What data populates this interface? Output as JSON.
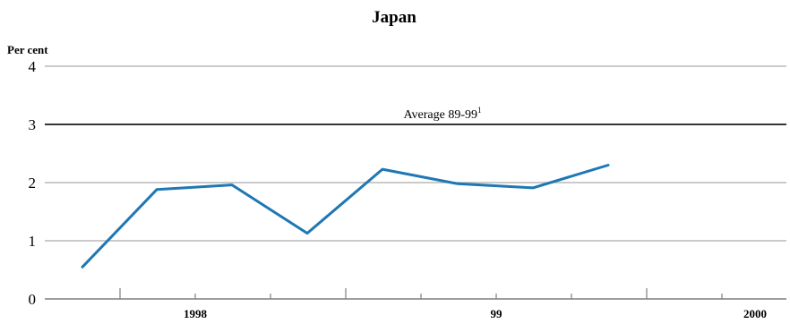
{
  "chart_data": {
    "type": "line",
    "title": "Japan",
    "ylabel": "Per cent",
    "ylim": [
      0,
      4
    ],
    "yticks": [
      "0",
      "1",
      "2",
      "3",
      "4"
    ],
    "xtick_labels": [
      "1998",
      "99",
      "2000"
    ],
    "grid": true,
    "series": [
      {
        "color": "#1f77b4",
        "x": [
          "1997 Q3",
          "1997 Q4",
          "1998 Q1",
          "1998 Q2",
          "1998 Q3",
          "1998 Q4",
          "1999 Q1",
          "1999 Q2"
        ],
        "values": [
          0.55,
          1.88,
          1.96,
          1.13,
          2.23,
          1.98,
          1.91,
          2.3
        ]
      }
    ],
    "reference_line": {
      "value": 3.0,
      "label": "Average 89-99",
      "footnote": "1"
    }
  }
}
